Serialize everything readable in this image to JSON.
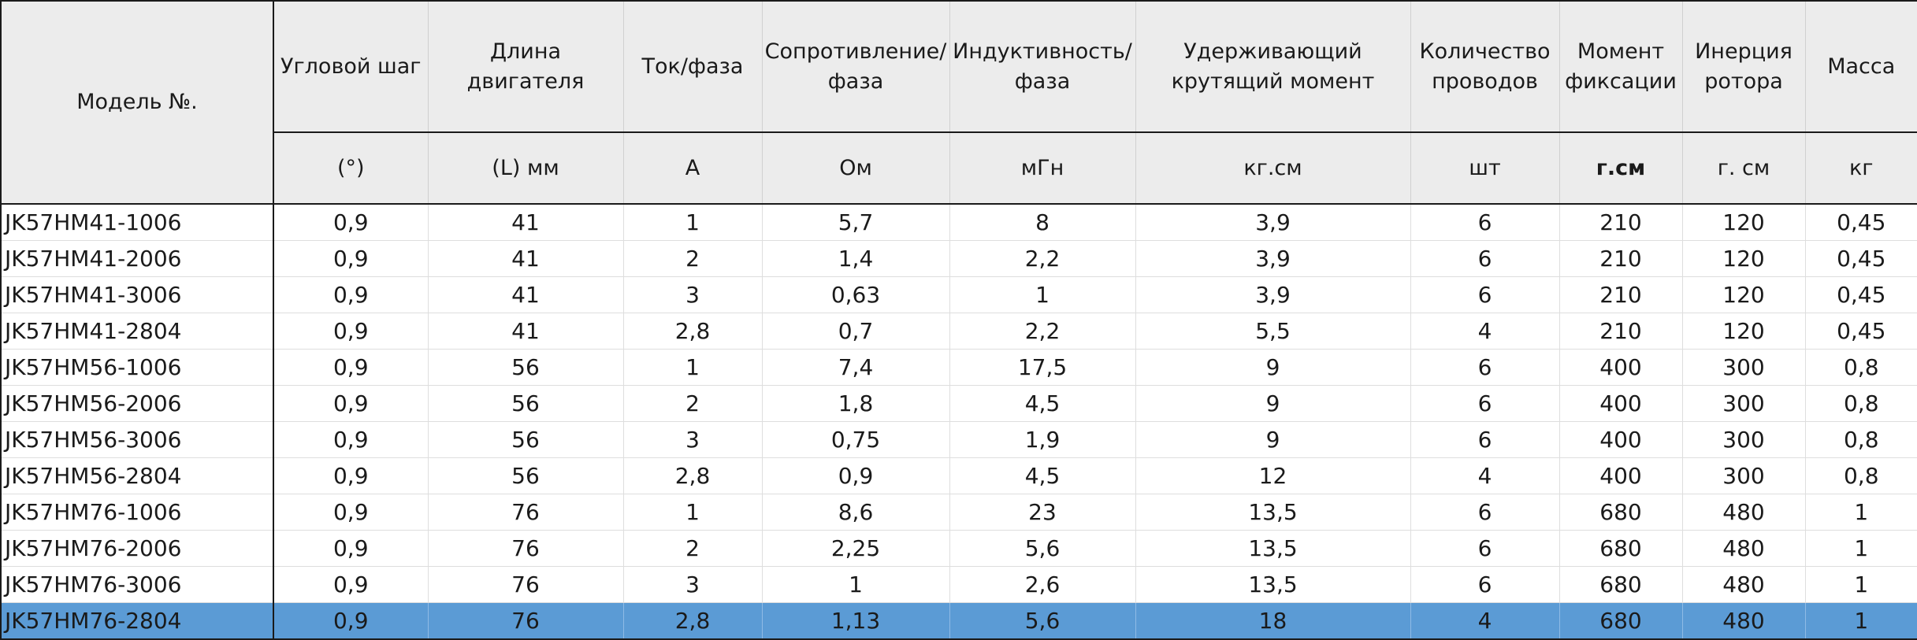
{
  "table": {
    "columns": [
      {
        "key": "model",
        "label": "Модель №.",
        "unit": ""
      },
      {
        "key": "step_angle",
        "label": "Угловой шаг",
        "unit": "(°)"
      },
      {
        "key": "length",
        "label": "Длина двигателя",
        "unit": "(L) мм"
      },
      {
        "key": "current",
        "label": "Ток/фаза",
        "unit": "A"
      },
      {
        "key": "resistance",
        "label": "Сопротивление/ фаза",
        "unit": "Ом"
      },
      {
        "key": "inductance",
        "label": "Индуктивность/ фаза",
        "unit": "мГн"
      },
      {
        "key": "holding_torque",
        "label": "Удерживающий крутящий момент",
        "unit": "кг.см"
      },
      {
        "key": "wires",
        "label": "Количество проводов",
        "unit": "шт"
      },
      {
        "key": "detent_torque",
        "label": "Момент фиксации",
        "unit": "г.см"
      },
      {
        "key": "inertia",
        "label": "Инерция ротора",
        "unit": "г. см"
      },
      {
        "key": "mass",
        "label": "Масса",
        "unit": "кг"
      }
    ],
    "rows": [
      [
        "JK57HM41-1006",
        "0,9",
        "41",
        "1",
        "5,7",
        "8",
        "3,9",
        "6",
        "210",
        "120",
        "0,45"
      ],
      [
        "JK57HM41-2006",
        "0,9",
        "41",
        "2",
        "1,4",
        "2,2",
        "3,9",
        "6",
        "210",
        "120",
        "0,45"
      ],
      [
        "JK57HM41-3006",
        "0,9",
        "41",
        "3",
        "0,63",
        "1",
        "3,9",
        "6",
        "210",
        "120",
        "0,45"
      ],
      [
        "JK57HM41-2804",
        "0,9",
        "41",
        "2,8",
        "0,7",
        "2,2",
        "5,5",
        "4",
        "210",
        "120",
        "0,45"
      ],
      [
        "JK57HM56-1006",
        "0,9",
        "56",
        "1",
        "7,4",
        "17,5",
        "9",
        "6",
        "400",
        "300",
        "0,8"
      ],
      [
        "JK57HM56-2006",
        "0,9",
        "56",
        "2",
        "1,8",
        "4,5",
        "9",
        "6",
        "400",
        "300",
        "0,8"
      ],
      [
        "JK57HM56-3006",
        "0,9",
        "56",
        "3",
        "0,75",
        "1,9",
        "9",
        "6",
        "400",
        "300",
        "0,8"
      ],
      [
        "JK57HM56-2804",
        "0,9",
        "56",
        "2,8",
        "0,9",
        "4,5",
        "12",
        "4",
        "400",
        "300",
        "0,8"
      ],
      [
        "JK57HM76-1006",
        "0,9",
        "76",
        "1",
        "8,6",
        "23",
        "13,5",
        "6",
        "680",
        "480",
        "1"
      ],
      [
        "JK57HM76-2006",
        "0,9",
        "76",
        "2",
        "2,25",
        "5,6",
        "13,5",
        "6",
        "680",
        "480",
        "1"
      ],
      [
        "JK57HM76-3006",
        "0,9",
        "76",
        "3",
        "1",
        "2,6",
        "13,5",
        "6",
        "680",
        "480",
        "1"
      ],
      [
        "JK57HM76-2804",
        "0,9",
        "76",
        "2,8",
        "1,13",
        "5,6",
        "18",
        "4",
        "680",
        "480",
        "1"
      ]
    ],
    "selected_row": 11,
    "colors": {
      "header_bg": "#ececec",
      "selected_bg": "#5b9bd5",
      "border": "#1a1a1a"
    }
  }
}
